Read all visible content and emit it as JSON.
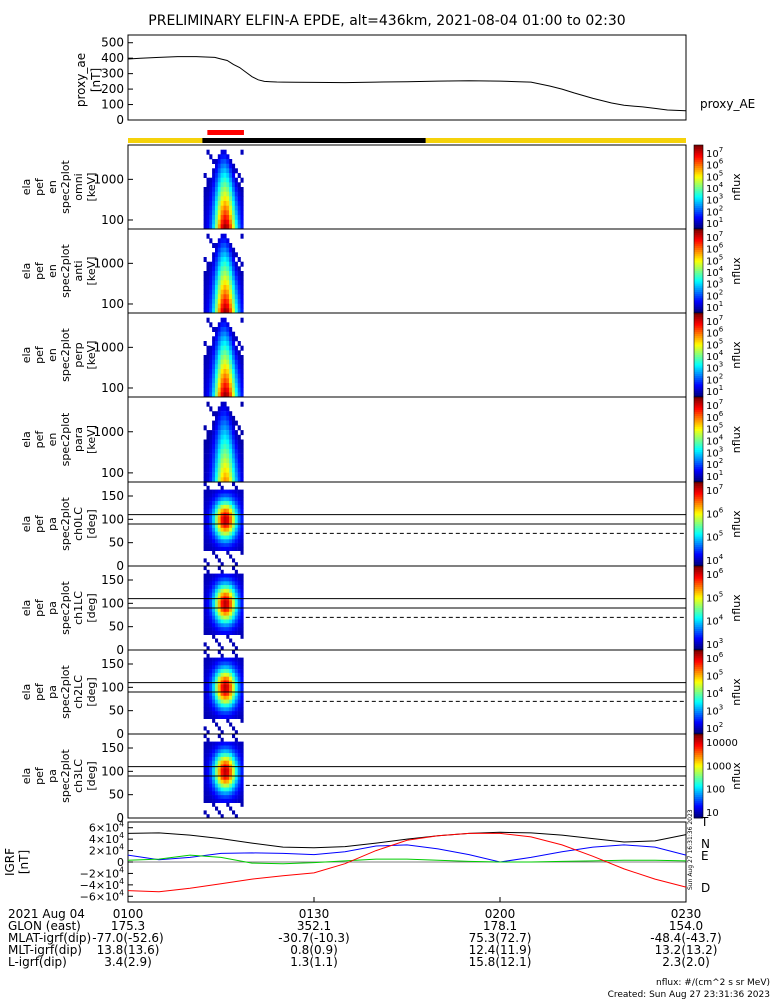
{
  "title": "PRELIMINARY ELFIN-A EPDE, alt=436km, 2021-08-04 01:00 to 02:30",
  "proxy_ae": {
    "ylabel": [
      "proxy_ae",
      "[nT]"
    ],
    "yticks": [
      "500",
      "400",
      "300",
      "200",
      "100",
      "0"
    ],
    "legend": "proxy_AE"
  },
  "spec_panels": [
    {
      "ylabel": [
        "ela",
        "pef",
        "en",
        "spec2plot",
        "omni",
        "[keV]"
      ],
      "yticks": [
        "1000",
        "100"
      ],
      "cbar_ticks": [
        "10^7",
        "10^6",
        "10^5",
        "10^4",
        "10^3",
        "10^2",
        "10^1"
      ],
      "unit": "nflux"
    },
    {
      "ylabel": [
        "ela",
        "pef",
        "en",
        "spec2plot",
        "anti",
        "[keV]"
      ],
      "yticks": [
        "1000",
        "100"
      ],
      "cbar_ticks": [
        "10^7",
        "10^6",
        "10^5",
        "10^4",
        "10^3",
        "10^2",
        "10^1"
      ],
      "unit": "nflux"
    },
    {
      "ylabel": [
        "ela",
        "pef",
        "en",
        "spec2plot",
        "perp",
        "[keV]"
      ],
      "yticks": [
        "1000",
        "100"
      ],
      "cbar_ticks": [
        "10^7",
        "10^6",
        "10^5",
        "10^4",
        "10^3",
        "10^2",
        "10^1"
      ],
      "unit": "nflux"
    },
    {
      "ylabel": [
        "ela",
        "pef",
        "en",
        "spec2plot",
        "para",
        "[keV]"
      ],
      "yticks": [
        "1000",
        "100"
      ],
      "cbar_ticks": [
        "10^7",
        "10^6",
        "10^5",
        "10^4",
        "10^3",
        "10^2",
        "10^1"
      ],
      "unit": "nflux"
    },
    {
      "ylabel": [
        "ela",
        "pef",
        "pa",
        "spec2plot",
        "ch0LC",
        "[deg]"
      ],
      "yticks": [
        "150",
        "100",
        "50",
        "0"
      ],
      "cbar_ticks": [
        "10^7",
        "10^6",
        "10^5",
        "10^4"
      ],
      "unit": "nflux"
    },
    {
      "ylabel": [
        "ela",
        "pef",
        "pa",
        "spec2plot",
        "ch1LC",
        "[deg]"
      ],
      "yticks": [
        "150",
        "100",
        "50",
        "0"
      ],
      "cbar_ticks": [
        "10^6",
        "10^5",
        "10^4",
        "10^3"
      ],
      "unit": "nflux"
    },
    {
      "ylabel": [
        "ela",
        "pef",
        "pa",
        "spec2plot",
        "ch2LC",
        "[deg]"
      ],
      "yticks": [
        "150",
        "100",
        "50",
        "0"
      ],
      "cbar_ticks": [
        "10^6",
        "10^5",
        "10^4",
        "10^3",
        "10^2"
      ],
      "unit": "nflux"
    },
    {
      "ylabel": [
        "ela",
        "pef",
        "pa",
        "spec2plot",
        "ch3LC",
        "[deg]"
      ],
      "yticks": [
        "150",
        "100",
        "50",
        "0"
      ],
      "cbar_ticks": [
        "10000",
        "1000",
        "100",
        "10"
      ],
      "unit": "nflux"
    }
  ],
  "igrf": {
    "ylabel": [
      "IGRF",
      "[nT]"
    ],
    "yticks": [
      "6×10^4",
      "4×10^4",
      "2×10^4",
      "0",
      "−2×10^4",
      "−4×10^4",
      "−6×10^4"
    ],
    "legend": [
      {
        "label": "T",
        "color": "#000000"
      },
      {
        "label": "N",
        "color": "#0000ff"
      },
      {
        "label": "E",
        "color": "#00cc00"
      },
      {
        "label": "D",
        "color": "#ff0000"
      }
    ],
    "stamp": "Sun Aug 27 16:31:36 2023"
  },
  "footer": {
    "rows": [
      {
        "label": "2021 Aug 04",
        "vals": [
          "0100",
          "0130",
          "0200",
          "0230"
        ]
      },
      {
        "label": "GLON (east)",
        "vals": [
          "175.3",
          "352.1",
          "178.1",
          "154.0"
        ]
      },
      {
        "label": "MLAT-igrf(dip)",
        "vals": [
          "-77.0(-52.6)",
          "-30.7(-10.3)",
          "75.3(72.7)",
          "-48.4(-43.7)"
        ]
      },
      {
        "label": "MLT-igrf(dip)",
        "vals": [
          "13.8(13.6)",
          "0.8(0.9)",
          "12.4(11.9)",
          "13.2(13.2)"
        ]
      },
      {
        "label": "L-igrf(dip)",
        "vals": [
          "3.4(2.9)",
          "1.3(1.1)",
          "15.8(12.1)",
          "2.3(2.0)"
        ]
      }
    ],
    "unit_note": "nflux: #/(cm^2 s sr MeV)",
    "created": "Created: Sun Aug 27 23:31:36 2023"
  },
  "chart_data": [
    {
      "type": "line",
      "name": "proxy_ae",
      "x_range": [
        "01:00",
        "02:30"
      ],
      "x_minutes": [
        0,
        2,
        5,
        8,
        11,
        14,
        15,
        16,
        17,
        18,
        19,
        20,
        21,
        22,
        23,
        24,
        25,
        27,
        30,
        35,
        40,
        45,
        50,
        55,
        60,
        63,
        65,
        68,
        70,
        72,
        75,
        78,
        80,
        83,
        85,
        87,
        90
      ],
      "values": [
        395,
        400,
        405,
        410,
        410,
        405,
        395,
        385,
        360,
        340,
        310,
        280,
        260,
        250,
        248,
        246,
        245,
        244,
        243,
        242,
        245,
        248,
        252,
        254,
        252,
        248,
        245,
        220,
        200,
        175,
        140,
        110,
        95,
        85,
        75,
        65,
        60
      ],
      "ylim": [
        0,
        550
      ],
      "yticks": [
        0,
        100,
        200,
        300,
        400,
        500
      ]
    },
    {
      "type": "line",
      "name": "IGRF",
      "x_minutes": [
        0,
        5,
        10,
        15,
        20,
        25,
        30,
        35,
        40,
        45,
        50,
        55,
        60,
        65,
        70,
        75,
        80,
        85,
        90
      ],
      "series": [
        {
          "name": "T",
          "values": [
            50000,
            51000,
            47000,
            41000,
            33000,
            26000,
            25000,
            27000,
            33000,
            40000,
            46000,
            50000,
            52000,
            51000,
            47000,
            41000,
            35000,
            37000,
            48000
          ]
        },
        {
          "name": "N",
          "values": [
            12000,
            4000,
            8000,
            15000,
            16000,
            15000,
            13000,
            18000,
            28000,
            30000,
            23000,
            13000,
            0,
            8000,
            18000,
            26000,
            30000,
            26000,
            12000
          ]
        },
        {
          "name": "E",
          "values": [
            3000,
            5000,
            12000,
            8000,
            -2000,
            -3000,
            -1000,
            2000,
            5000,
            5000,
            3000,
            1000,
            0,
            0,
            1000,
            2000,
            3000,
            3000,
            2000
          ]
        },
        {
          "name": "D",
          "values": [
            -50000,
            -52000,
            -46000,
            -38000,
            -30000,
            -24000,
            -19000,
            -3000,
            20000,
            38000,
            46000,
            50000,
            50000,
            44000,
            30000,
            10000,
            -12000,
            -30000,
            -44000
          ]
        }
      ],
      "ylim": [
        -70000,
        70000
      ]
    },
    {
      "type": "heatmap",
      "name": "spectrograms",
      "note": "energy/pitch-angle flux spectrograms with data only near 01:14-01:18 UT",
      "active_interval_minutes": [
        14,
        18
      ]
    }
  ]
}
